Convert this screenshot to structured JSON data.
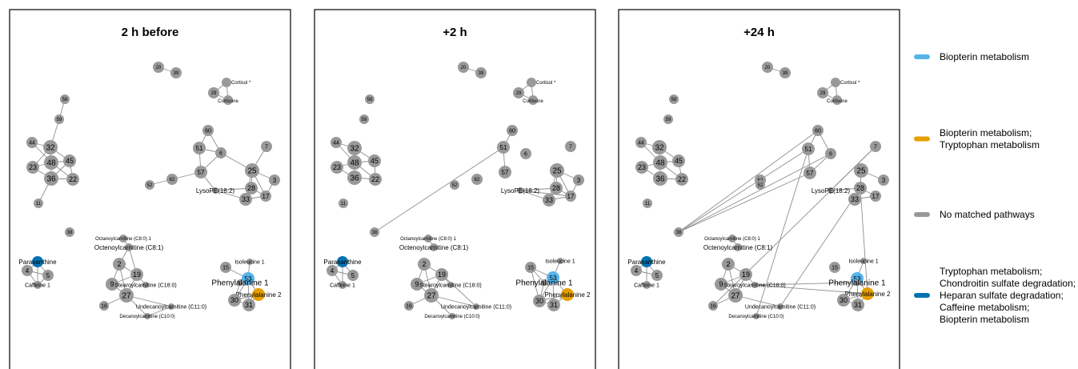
{
  "colors": {
    "biopterin": "#56B4E9",
    "biopterin_tryptophan": "#E69F00",
    "none": "#999999",
    "multi": "#0072B2"
  },
  "panels": [
    {
      "title": "2 h before"
    },
    {
      "title": "+2 h"
    },
    {
      "title": "+24 h"
    }
  ],
  "legend": [
    {
      "color_key": "biopterin",
      "lines": [
        "Biopterin metabolism"
      ]
    },
    {
      "color_key": "biopterin_tryptophan",
      "lines": [
        "Biopterin metabolism;",
        "Tryptophan metabolism"
      ]
    },
    {
      "color_key": "none",
      "lines": [
        "No matched pathways"
      ]
    },
    {
      "color_key": "multi",
      "lines": [
        "Tryptophan metabolism;",
        "Chondroitin sulfate degradation;",
        "Heparan sulfate degradation;",
        "Caffeine metabolism;",
        "Biopterin metabolism"
      ]
    }
  ],
  "nodes": [
    {
      "id": "20",
      "label": "20",
      "cat": "none"
    },
    {
      "id": "39",
      "label": "39",
      "cat": "none"
    },
    {
      "id": "cortisol",
      "label": "Cortisol *",
      "cat": "none"
    },
    {
      "id": "29",
      "label": "29",
      "cat": "none"
    },
    {
      "id": "cortisone",
      "label": "Cortisone",
      "cat": "none"
    },
    {
      "id": "58",
      "label": "58",
      "cat": "none"
    },
    {
      "id": "59",
      "label": "59",
      "cat": "none"
    },
    {
      "id": "44",
      "label": "44",
      "cat": "none"
    },
    {
      "id": "32",
      "label": "32",
      "cat": "none"
    },
    {
      "id": "48",
      "label": "48",
      "cat": "none"
    },
    {
      "id": "45",
      "label": "45",
      "cat": "none"
    },
    {
      "id": "23",
      "label": "23",
      "cat": "none"
    },
    {
      "id": "36",
      "label": "36",
      "cat": "none"
    },
    {
      "id": "22",
      "label": "22",
      "cat": "none"
    },
    {
      "id": "11",
      "label": "11",
      "cat": "none"
    },
    {
      "id": "60",
      "label": "60",
      "cat": "none"
    },
    {
      "id": "51",
      "label": "51",
      "cat": "none"
    },
    {
      "id": "6",
      "label": "6",
      "cat": "none"
    },
    {
      "id": "7",
      "label": "7",
      "cat": "none"
    },
    {
      "id": "57",
      "label": "57",
      "cat": "none"
    },
    {
      "id": "25",
      "label": "25",
      "cat": "none"
    },
    {
      "id": "3",
      "label": "3",
      "cat": "none"
    },
    {
      "id": "62",
      "label": "62",
      "cat": "none"
    },
    {
      "id": "52",
      "label": "52",
      "cat": "none"
    },
    {
      "id": "lysope",
      "label": "LysoPE(18:2)",
      "cat": "none"
    },
    {
      "id": "28",
      "label": "28",
      "cat": "none"
    },
    {
      "id": "33",
      "label": "33",
      "cat": "none"
    },
    {
      "id": "17",
      "label": "17",
      "cat": "none"
    },
    {
      "id": "38",
      "label": "38",
      "cat": "none"
    },
    {
      "id": "octanoyl",
      "label": "Octanoylcarnitine (C8:0) 1",
      "cat": "none"
    },
    {
      "id": "octenoyl",
      "label": "Octenoylcarnitine (C8:1)",
      "cat": "none"
    },
    {
      "id": "paraxanthine",
      "label": "Paraxanthine",
      "cat": "multi"
    },
    {
      "id": "4",
      "label": "4",
      "cat": "none"
    },
    {
      "id": "5",
      "label": "5",
      "cat": "none"
    },
    {
      "id": "caffeine",
      "label": "Caffeine 1",
      "cat": "none"
    },
    {
      "id": "2",
      "label": "2",
      "cat": "none"
    },
    {
      "id": "19",
      "label": "19",
      "cat": "none"
    },
    {
      "id": "9",
      "label": "9",
      "cat": "none"
    },
    {
      "id": "27",
      "label": "27",
      "cat": "none"
    },
    {
      "id": "16",
      "label": "16",
      "cat": "none"
    },
    {
      "id": "stearoyl",
      "label": "Stearoylcarnitine (C18:0)",
      "cat": "none"
    },
    {
      "id": "undecanoyl",
      "label": "Undecanoylcarnitine (C11:0)",
      "cat": "none"
    },
    {
      "id": "decanoyl",
      "label": "Decanoylcarnitine (C10:0)",
      "cat": "none"
    },
    {
      "id": "isoleucine",
      "label": "Isoleucine 1",
      "cat": "none"
    },
    {
      "id": "15",
      "label": "15",
      "cat": "none"
    },
    {
      "id": "53",
      "label": "53",
      "cat": "biopterin"
    },
    {
      "id": "phe1",
      "label": "Phenylalanine 1",
      "cat": "none"
    },
    {
      "id": "phe2",
      "label": "Phenylalanine 2",
      "cat": "biopterin_tryptophan"
    },
    {
      "id": "30",
      "label": "30",
      "cat": "none"
    },
    {
      "id": "31",
      "label": "31",
      "cat": "none"
    }
  ],
  "edges": [
    [
      [
        "20",
        "39"
      ],
      [
        "cortisol",
        "29"
      ],
      [
        "cortisol",
        "cortisone"
      ],
      [
        "29",
        "cortisone"
      ],
      [
        "58",
        "59"
      ],
      [
        "59",
        "32"
      ],
      [
        "44",
        "32"
      ],
      [
        "44",
        "48"
      ],
      [
        "32",
        "48"
      ],
      [
        "32",
        "45"
      ],
      [
        "23",
        "48"
      ],
      [
        "23",
        "36"
      ],
      [
        "23",
        "32"
      ],
      [
        "48",
        "45"
      ],
      [
        "48",
        "36"
      ],
      [
        "48",
        "22"
      ],
      [
        "45",
        "22"
      ],
      [
        "36",
        "22"
      ],
      [
        "45",
        "36"
      ],
      [
        "36",
        "11"
      ],
      [
        "60",
        "51"
      ],
      [
        "60",
        "6"
      ],
      [
        "51",
        "57"
      ],
      [
        "51",
        "6"
      ],
      [
        "57",
        "62"
      ],
      [
        "62",
        "52"
      ],
      [
        "57",
        "6"
      ],
      [
        "57",
        "lysope"
      ],
      [
        "6",
        "25"
      ],
      [
        "7",
        "25"
      ],
      [
        "25",
        "3"
      ],
      [
        "25",
        "28"
      ],
      [
        "25",
        "33"
      ],
      [
        "25",
        "17"
      ],
      [
        "3",
        "17"
      ],
      [
        "28",
        "17"
      ],
      [
        "28",
        "33"
      ],
      [
        "33",
        "17"
      ],
      [
        "28",
        "lysope"
      ],
      [
        "lysope",
        "33"
      ],
      [
        "paraxanthine",
        "4"
      ],
      [
        "paraxanthine",
        "5"
      ],
      [
        "paraxanthine",
        "caffeine"
      ],
      [
        "4",
        "5"
      ],
      [
        "4",
        "caffeine"
      ],
      [
        "5",
        "caffeine"
      ],
      [
        "octanoyl",
        "octenoyl"
      ],
      [
        "octenoyl",
        "2"
      ],
      [
        "octenoyl",
        "19"
      ],
      [
        "2",
        "19"
      ],
      [
        "2",
        "9"
      ],
      [
        "2",
        "27"
      ],
      [
        "19",
        "9"
      ],
      [
        "19",
        "27"
      ],
      [
        "19",
        "stearoyl"
      ],
      [
        "9",
        "27"
      ],
      [
        "27",
        "16"
      ],
      [
        "27",
        "undecanoyl"
      ],
      [
        "27",
        "decanoyl"
      ],
      [
        "undecanoyl",
        "decanoyl"
      ],
      [
        "isoleucine",
        "53"
      ],
      [
        "15",
        "53"
      ],
      [
        "53",
        "phe1"
      ],
      [
        "53",
        "phe2"
      ],
      [
        "53",
        "30"
      ],
      [
        "53",
        "31"
      ],
      [
        "30",
        "31"
      ],
      [
        "phe1",
        "30"
      ],
      [
        "phe2",
        "30"
      ],
      [
        "phe2",
        "31"
      ]
    ],
    [
      [
        "20",
        "39"
      ],
      [
        "cortisol",
        "29"
      ],
      [
        "cortisol",
        "cortisone"
      ],
      [
        "29",
        "cortisone"
      ],
      [
        "44",
        "32"
      ],
      [
        "44",
        "48"
      ],
      [
        "32",
        "48"
      ],
      [
        "32",
        "45"
      ],
      [
        "23",
        "48"
      ],
      [
        "23",
        "36"
      ],
      [
        "48",
        "45"
      ],
      [
        "48",
        "36"
      ],
      [
        "48",
        "22"
      ],
      [
        "45",
        "22"
      ],
      [
        "36",
        "22"
      ],
      [
        "60",
        "51"
      ],
      [
        "51",
        "57"
      ],
      [
        "51",
        "38"
      ],
      [
        "25",
        "3"
      ],
      [
        "25",
        "28"
      ],
      [
        "25",
        "33"
      ],
      [
        "25",
        "17"
      ],
      [
        "3",
        "17"
      ],
      [
        "28",
        "17"
      ],
      [
        "28",
        "33"
      ],
      [
        "33",
        "17"
      ],
      [
        "28",
        "lysope"
      ],
      [
        "lysope",
        "33"
      ],
      [
        "lysope",
        "17"
      ],
      [
        "paraxanthine",
        "4"
      ],
      [
        "paraxanthine",
        "5"
      ],
      [
        "paraxanthine",
        "caffeine"
      ],
      [
        "4",
        "5"
      ],
      [
        "4",
        "caffeine"
      ],
      [
        "octanoyl",
        "octenoyl"
      ],
      [
        "2",
        "19"
      ],
      [
        "2",
        "9"
      ],
      [
        "2",
        "27"
      ],
      [
        "19",
        "9"
      ],
      [
        "19",
        "27"
      ],
      [
        "19",
        "stearoyl"
      ],
      [
        "9",
        "27"
      ],
      [
        "27",
        "16"
      ],
      [
        "27",
        "undecanoyl"
      ],
      [
        "27",
        "decanoyl"
      ],
      [
        "19",
        "undecanoyl"
      ],
      [
        "isoleucine",
        "53"
      ],
      [
        "15",
        "53"
      ],
      [
        "15",
        "phe1"
      ],
      [
        "53",
        "phe1"
      ],
      [
        "53",
        "phe2"
      ],
      [
        "53",
        "30"
      ],
      [
        "53",
        "31"
      ],
      [
        "30",
        "31"
      ],
      [
        "phe1",
        "30"
      ],
      [
        "phe2",
        "30"
      ],
      [
        "phe2",
        "31"
      ],
      [
        "15",
        "30"
      ]
    ],
    [
      [
        "20",
        "39"
      ],
      [
        "cortisol",
        "29"
      ],
      [
        "cortisol",
        "cortisone"
      ],
      [
        "29",
        "cortisone"
      ],
      [
        "44",
        "32"
      ],
      [
        "44",
        "48"
      ],
      [
        "32",
        "48"
      ],
      [
        "32",
        "45"
      ],
      [
        "23",
        "48"
      ],
      [
        "23",
        "36"
      ],
      [
        "48",
        "45"
      ],
      [
        "48",
        "36"
      ],
      [
        "48",
        "22"
      ],
      [
        "45",
        "22"
      ],
      [
        "36",
        "22"
      ],
      [
        "60",
        "51"
      ],
      [
        "60",
        "6"
      ],
      [
        "60",
        "38"
      ],
      [
        "51",
        "38"
      ],
      [
        "51",
        "57"
      ],
      [
        "57",
        "6"
      ],
      [
        "57",
        "38"
      ],
      [
        "6",
        "38"
      ],
      [
        "51",
        "decanoyl"
      ],
      [
        "7",
        "lysope"
      ],
      [
        "7",
        "16"
      ],
      [
        "25",
        "3"
      ],
      [
        "25",
        "28"
      ],
      [
        "28",
        "17"
      ],
      [
        "28",
        "33"
      ],
      [
        "33",
        "17"
      ],
      [
        "28",
        "lysope"
      ],
      [
        "28",
        "undecanoyl"
      ],
      [
        "28",
        "phe2"
      ],
      [
        "paraxanthine",
        "4"
      ],
      [
        "paraxanthine",
        "5"
      ],
      [
        "paraxanthine",
        "caffeine"
      ],
      [
        "4",
        "5"
      ],
      [
        "octanoyl",
        "octenoyl"
      ],
      [
        "2",
        "19"
      ],
      [
        "2",
        "9"
      ],
      [
        "2",
        "27"
      ],
      [
        "19",
        "9"
      ],
      [
        "19",
        "27"
      ],
      [
        "19",
        "stearoyl"
      ],
      [
        "9",
        "27"
      ],
      [
        "27",
        "16"
      ],
      [
        "27",
        "undecanoyl"
      ],
      [
        "stearoyl",
        "phe1"
      ],
      [
        "stearoyl",
        "phe2"
      ],
      [
        "isoleucine",
        "53"
      ],
      [
        "53",
        "phe1"
      ],
      [
        "53",
        "phe2"
      ],
      [
        "53",
        "30"
      ],
      [
        "53",
        "31"
      ],
      [
        "30",
        "31"
      ],
      [
        "phe2",
        "30"
      ],
      [
        "phe2",
        "31"
      ]
    ]
  ]
}
